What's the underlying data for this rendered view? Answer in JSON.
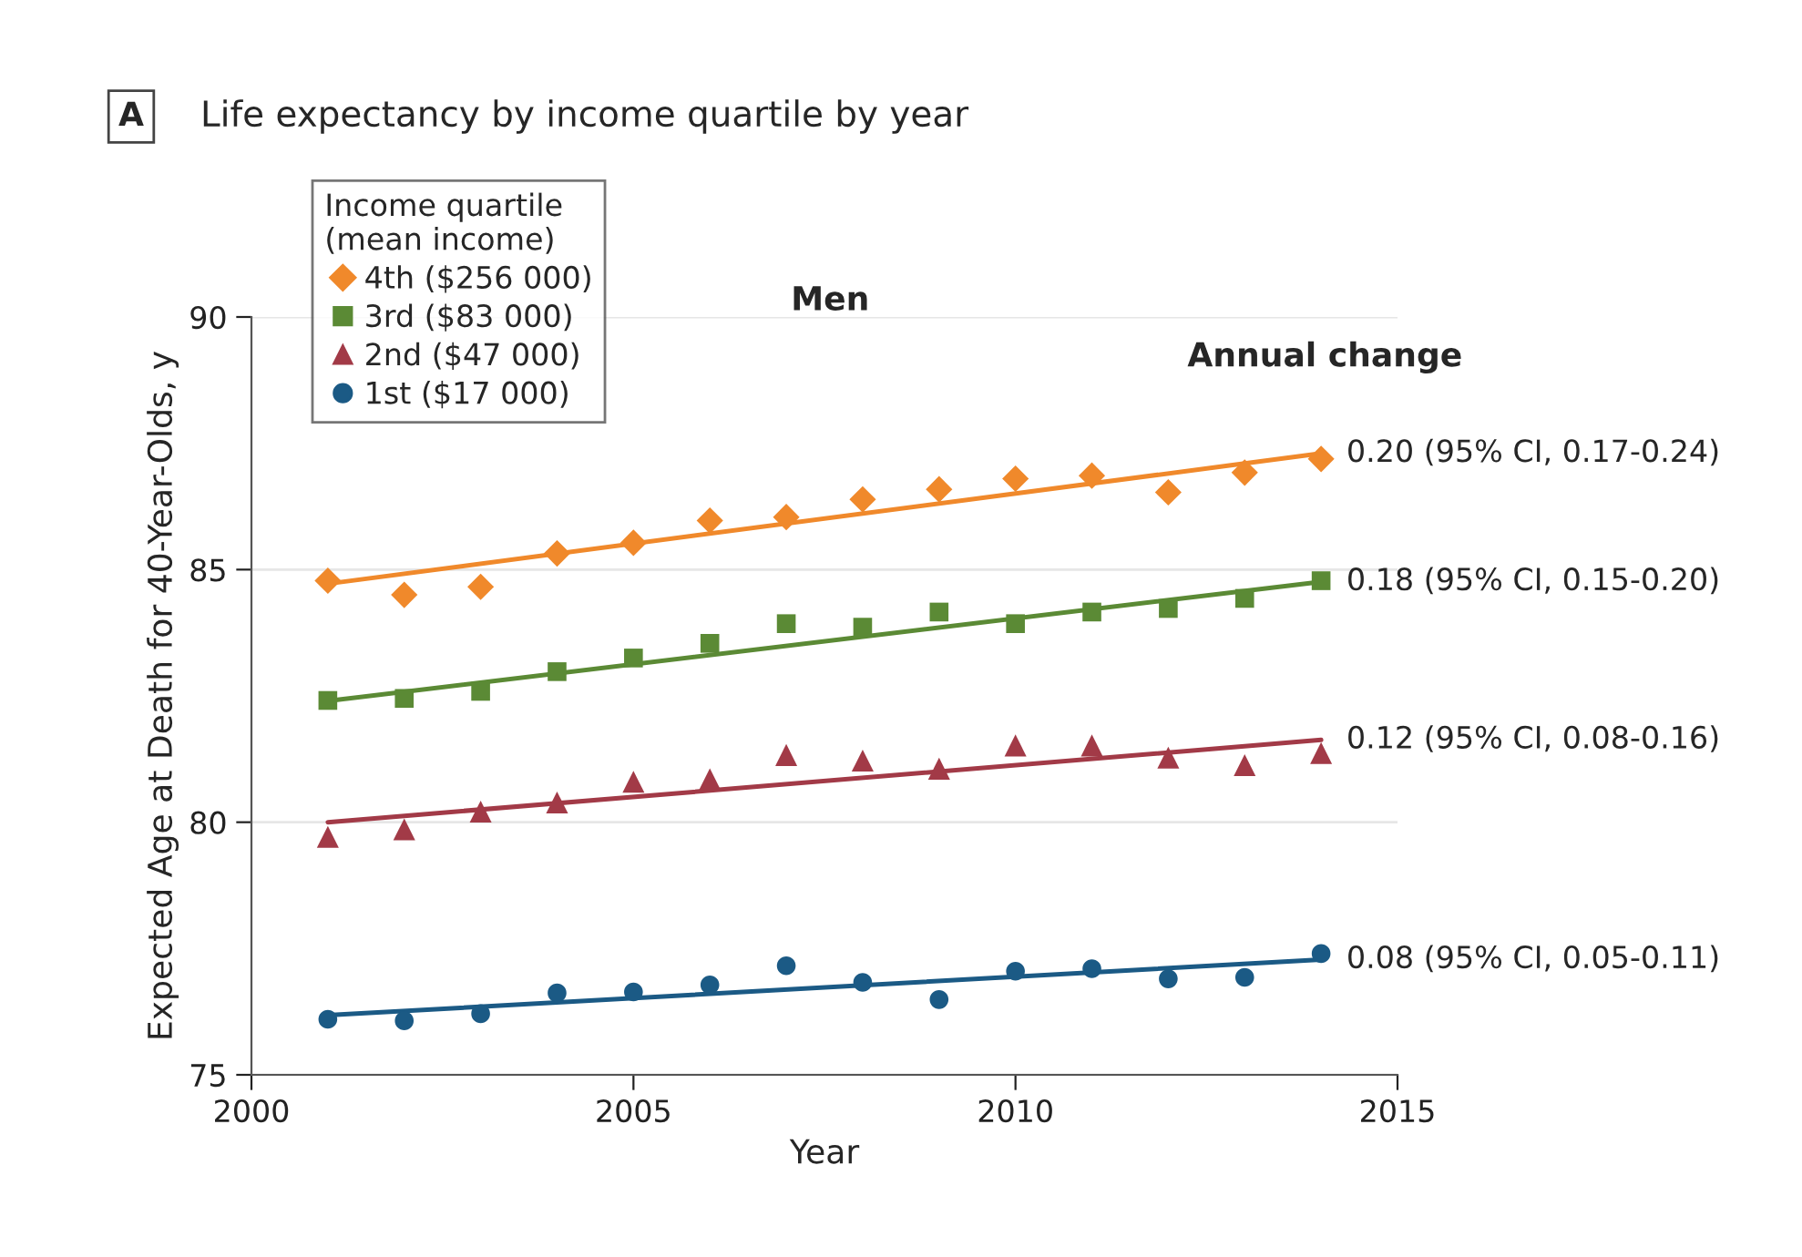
{
  "chart_data": {
    "type": "scatter",
    "title": "Life expectancy by income quartile by year",
    "subtitle": "Men",
    "xlabel": "Year",
    "ylabel": "Expected Age at Death for 40-Year-Olds, y",
    "legend_title": "Income quartile\n(mean income)",
    "xlim": [
      2000,
      2015
    ],
    "xticks": [
      2000,
      2005,
      2010,
      2015
    ],
    "ylim": [
      75,
      90
    ],
    "yticks": [
      75,
      80,
      85,
      90
    ],
    "grid": "y",
    "legend": "top left",
    "series": [
      {
        "name": "4th ($256 000)",
        "color": "#f0892b",
        "marker": "diamond",
        "x": [
          2001,
          2002,
          2003,
          2004,
          2005,
          2006,
          2007,
          2008,
          2009,
          2010,
          2011,
          2012,
          2013,
          2014
        ],
        "values": [
          84.78,
          84.5,
          84.66,
          85.32,
          85.53,
          85.97,
          86.04,
          86.39,
          86.59,
          86.8,
          86.86,
          86.53,
          86.92,
          87.19
        ]
      },
      {
        "name": "3rd ($83 000)",
        "color": "#5b8a35",
        "marker": "square",
        "x": [
          2001,
          2002,
          2003,
          2004,
          2005,
          2006,
          2007,
          2008,
          2009,
          2010,
          2011,
          2012,
          2013,
          2014
        ],
        "values": [
          82.41,
          82.45,
          82.59,
          82.98,
          83.25,
          83.54,
          83.93,
          83.86,
          84.16,
          83.93,
          84.16,
          84.23,
          84.43,
          84.78
        ]
      },
      {
        "name": "2nd ($47 000)",
        "color": "#a23a47",
        "marker": "triangle",
        "x": [
          2001,
          2002,
          2003,
          2004,
          2005,
          2006,
          2007,
          2008,
          2009,
          2010,
          2011,
          2012,
          2013,
          2014
        ],
        "values": [
          79.71,
          79.86,
          80.21,
          80.39,
          80.8,
          80.85,
          81.33,
          81.22,
          81.06,
          81.52,
          81.52,
          81.28,
          81.13,
          81.37
        ]
      },
      {
        "name": "1st ($17 000)",
        "color": "#1b5a85",
        "marker": "circle",
        "x": [
          2001,
          2002,
          2003,
          2004,
          2005,
          2006,
          2007,
          2008,
          2009,
          2010,
          2011,
          2012,
          2013,
          2014
        ],
        "values": [
          76.1,
          76.07,
          76.21,
          76.62,
          76.64,
          76.78,
          77.16,
          76.83,
          76.49,
          77.05,
          77.1,
          76.9,
          76.93,
          77.4
        ]
      },
      {
        "type": "line",
        "color": "#f0892b",
        "marker": "none",
        "x": [
          2001,
          2014
        ],
        "values": [
          84.72,
          87.3
        ]
      },
      {
        "type": "line",
        "color": "#5b8a35",
        "marker": "none",
        "x": [
          2001,
          2014
        ],
        "values": [
          82.4,
          84.76
        ]
      },
      {
        "type": "line",
        "color": "#a23a47",
        "marker": "none",
        "x": [
          2001,
          2014
        ],
        "values": [
          80.0,
          81.63
        ]
      },
      {
        "type": "line",
        "color": "#1b5a85",
        "marker": "none",
        "x": [
          2001,
          2014
        ],
        "values": [
          76.18,
          77.28
        ]
      }
    ],
    "annotations": [
      "A",
      "Annual change",
      "0.20 (95% CI, 0.17-0.24)",
      "0.18 (95% CI, 0.15-0.20)",
      "0.12 (95% CI, 0.08-0.16)",
      "0.08 (95% CI, 0.05-0.11)"
    ]
  }
}
